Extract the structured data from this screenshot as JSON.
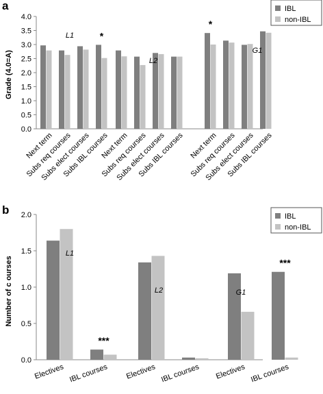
{
  "colors": {
    "ibl": "#7f7f7f",
    "non_ibl": "#c3c3c3",
    "axis": "#888888",
    "grid": "#d0d0d0"
  },
  "chart_data": [
    {
      "panel": "a",
      "type": "bar",
      "ylabel": "Grade (4.0=A)",
      "ylim": [
        0,
        4.0
      ],
      "yticks": [
        "0.0",
        "0.5",
        "1.0",
        "1.5",
        "2.0",
        "2.5",
        "3.0",
        "3.5",
        "4.0"
      ],
      "grid": false,
      "legend_position": "top-right",
      "groups": [
        {
          "name": "L1",
          "significance": [
            "",
            "",
            "",
            "*"
          ]
        },
        {
          "name": "L2",
          "significance": [
            "",
            "",
            "",
            ""
          ]
        },
        {
          "name": "G1",
          "significance": [
            "*",
            "",
            "",
            ""
          ]
        }
      ],
      "categories": [
        "Next term",
        "Subs req courses",
        "Subs elect courses",
        "Subs IBL courses"
      ],
      "series": [
        {
          "name": "IBL",
          "values": [
            [
              2.97,
              2.79,
              2.94,
              2.99
            ],
            [
              2.79,
              2.57,
              2.7,
              2.57
            ],
            [
              3.41,
              3.14,
              2.99,
              3.47
            ]
          ]
        },
        {
          "name": "non-IBL",
          "values": [
            [
              2.79,
              2.63,
              2.82,
              2.52
            ],
            [
              2.58,
              2.27,
              2.66,
              2.57
            ],
            [
              3.0,
              3.07,
              3.02,
              3.42
            ]
          ]
        }
      ]
    },
    {
      "panel": "b",
      "type": "bar",
      "ylabel": "Number of c ourses",
      "ylim": [
        0,
        2.0
      ],
      "yticks": [
        "0.0",
        "0.5",
        "1.0",
        "1.5",
        "2.0"
      ],
      "grid": false,
      "legend_position": "top-right",
      "groups": [
        {
          "name": "L1",
          "significance": [
            "",
            "***"
          ]
        },
        {
          "name": "L2",
          "significance": [
            "",
            ""
          ]
        },
        {
          "name": "G1",
          "significance": [
            "",
            "***"
          ]
        }
      ],
      "categories": [
        "Electives",
        "IBL courses"
      ],
      "series": [
        {
          "name": "IBL",
          "values": [
            [
              1.64,
              0.14
            ],
            [
              1.34,
              0.03
            ],
            [
              1.19,
              1.21
            ]
          ]
        },
        {
          "name": "non-IBL",
          "values": [
            [
              1.8,
              0.07
            ],
            [
              1.43,
              0.02
            ],
            [
              0.66,
              0.03
            ]
          ]
        }
      ]
    }
  ]
}
